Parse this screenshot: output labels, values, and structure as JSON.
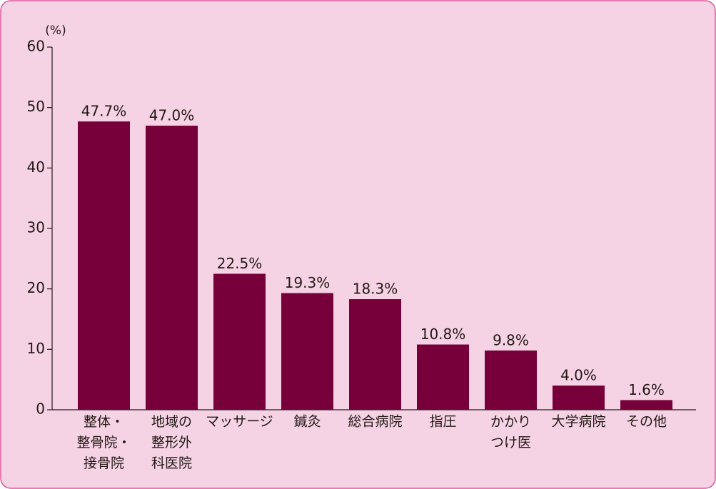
{
  "chart_data": {
    "type": "bar",
    "y_unit": "(%)",
    "categories": [
      "整体・\n整骨院・\n接骨院",
      "地域の\n整形外\n科医院",
      "マッサージ",
      "鍼灸",
      "総合病院",
      "指圧",
      "かかり\nつけ医",
      "大学病院",
      "その他"
    ],
    "values": [
      47.7,
      47.0,
      22.5,
      19.3,
      18.3,
      10.8,
      9.8,
      4.0,
      1.6
    ],
    "value_labels": [
      "47.7%",
      "47.0%",
      "22.5%",
      "19.3%",
      "18.3%",
      "10.8%",
      "9.8%",
      "4.0%",
      "1.6%"
    ],
    "color": "#78003a",
    "ylim": [
      0,
      60
    ],
    "yticks": [
      0,
      10,
      20,
      30,
      40,
      50,
      60
    ]
  }
}
